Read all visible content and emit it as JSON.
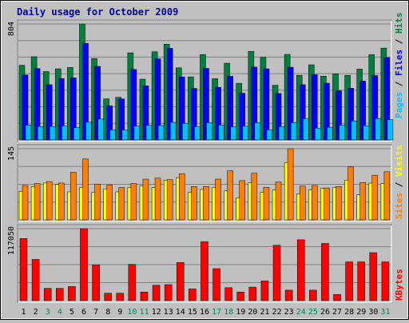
{
  "chart_data": {
    "type": "bar",
    "title": "Daily usage for October 2009",
    "categories": [
      "1",
      "2",
      "3",
      "4",
      "5",
      "6",
      "7",
      "8",
      "9",
      "10",
      "11",
      "12",
      "13",
      "14",
      "15",
      "16",
      "17",
      "18",
      "19",
      "20",
      "21",
      "22",
      "23",
      "24",
      "25",
      "26",
      "27",
      "28",
      "29",
      "30",
      "31"
    ],
    "weekend_days": [
      "3",
      "4",
      "10",
      "11",
      "17",
      "18",
      "24",
      "25",
      "31"
    ],
    "panels": [
      {
        "ylabel_max": "804",
        "ylim": [
          0,
          804
        ],
        "series": [
          {
            "name": "Hits",
            "color": "#008040",
            "values": [
              518,
              577,
              474,
              493,
              502,
              804,
              564,
              285,
              296,
              604,
              421,
              611,
              664,
              500,
              437,
              592,
              425,
              532,
              393,
              614,
              573,
              379,
              593,
              448,
              521,
              442,
              458,
              448,
              491,
              591,
              637
            ]
          },
          {
            "name": "Files",
            "color": "#0000ff",
            "values": [
              450,
              495,
              383,
              426,
              430,
              670,
              510,
              237,
              284,
              489,
              375,
              562,
              635,
              437,
              357,
              496,
              365,
              441,
              324,
              505,
              493,
              322,
              504,
              383,
              453,
              393,
              341,
              358,
              408,
              446,
              571
            ]
          },
          {
            "name": "Pages",
            "color": "#00c0ff",
            "values": [
              103,
              93,
              93,
              97,
              85,
              123,
              145,
              70,
              68,
              96,
              102,
              100,
              122,
              115,
              92,
              120,
              103,
              91,
              95,
              120,
              70,
              92,
              120,
              148,
              82,
              88,
              102,
              131,
              98,
              148,
              140
            ]
          }
        ]
      },
      {
        "ylabel_max": "145",
        "ylim": [
          0,
          145
        ],
        "series": [
          {
            "name": "Visits",
            "color": "#ffff00",
            "values": [
              58,
              68,
              75,
              72,
              57,
              66,
              56,
              63,
              57,
              66,
              69,
              66,
              81,
              86,
              56,
              62,
              66,
              59,
              45,
              76,
              56,
              61,
              117,
              53,
              61,
              64,
              66,
              81,
              51,
              75,
              74
            ]
          },
          {
            "name": "Sites",
            "color": "#ff8000",
            "values": [
              70,
              74,
              78,
              75,
              97,
              124,
              73,
              71,
              66,
              74,
              83,
              85,
              82,
              94,
              68,
              68,
              83,
              100,
              80,
              95,
              66,
              77,
              145,
              69,
              70,
              65,
              68,
              108,
              76,
              91,
              98
            ]
          }
        ]
      },
      {
        "ylabel_max": "117050",
        "ylim": [
          0,
          117050
        ],
        "series": [
          {
            "name": "KBytes",
            "color": "#ff0000",
            "values": [
              101000,
              67000,
              20000,
              20000,
              23000,
              117050,
              58000,
              12000,
              12000,
              59000,
              14000,
              25000,
              26000,
              62000,
              19000,
              96000,
              52000,
              21000,
              14000,
              22000,
              32000,
              90000,
              17000,
              99000,
              17000,
              93000,
              10000,
              63000,
              63000,
              78000,
              63000
            ]
          }
        ]
      }
    ]
  }
}
